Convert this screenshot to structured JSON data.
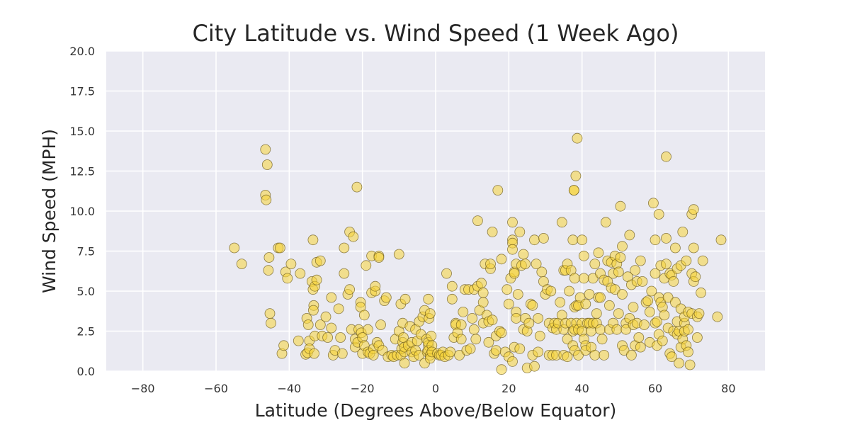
{
  "chart_data": {
    "type": "scatter",
    "title": "City Latitude vs. Wind Speed (1 Week Ago)",
    "xlabel": "Latitude (Degrees Above/Below Equator)",
    "ylabel": "Wind Speed (MPH)",
    "xlim": [
      -90,
      90
    ],
    "ylim": [
      0,
      20
    ],
    "x_ticks": [
      "−80",
      "−60",
      "−40",
      "−20",
      "0",
      "20",
      "40",
      "60",
      "80"
    ],
    "y_ticks": [
      "0.0",
      "2.5",
      "5.0",
      "7.5",
      "10.0",
      "12.5",
      "15.0",
      "17.5",
      "20.0"
    ],
    "grid": true,
    "legend": "none",
    "colors": {
      "background": "#eaeaf2",
      "grid": "#ffffff",
      "marker_fill": "#f5d33b",
      "marker_edge": "#6b5a1e"
    },
    "points": [
      [
        -55,
        7.7
      ],
      [
        -53,
        6.7
      ],
      [
        -46.5,
        13.85
      ],
      [
        -46,
        12.9
      ],
      [
        -46.5,
        11
      ],
      [
        -46.3,
        10.7
      ],
      [
        -45.5,
        7.1
      ],
      [
        -45.7,
        6.3
      ],
      [
        -45.3,
        3.6
      ],
      [
        -45,
        3
      ],
      [
        -43,
        7.7
      ],
      [
        -42.5,
        7.7
      ],
      [
        -42,
        1.1
      ],
      [
        -41.5,
        1.6
      ],
      [
        -41,
        6.2
      ],
      [
        -40.5,
        5.8
      ],
      [
        -39.5,
        6.7
      ],
      [
        -37,
        6.1
      ],
      [
        -37.5,
        1.9
      ],
      [
        -35.5,
        1.05
      ],
      [
        -35,
        1.15
      ],
      [
        -35.2,
        3.3
      ],
      [
        -34.8,
        2.9
      ],
      [
        -34.5,
        1.9
      ],
      [
        -34.5,
        1.4
      ],
      [
        -33.5,
        8.2
      ],
      [
        -33.8,
        5.6
      ],
      [
        -33.5,
        5.1
      ],
      [
        -33,
        5.3
      ],
      [
        -33.3,
        4.1
      ],
      [
        -33.4,
        3.8
      ],
      [
        -33,
        2.2
      ],
      [
        -33.2,
        1.1
      ],
      [
        -32.5,
        5.7
      ],
      [
        -32.5,
        6.8
      ],
      [
        -31.5,
        6.9
      ],
      [
        -31,
        2.2
      ],
      [
        -31.5,
        2.9
      ],
      [
        -30,
        3.4
      ],
      [
        -29.5,
        2.1
      ],
      [
        -28.5,
        4.6
      ],
      [
        -28.5,
        2.7
      ],
      [
        -28,
        1.0
      ],
      [
        -27.5,
        1.3
      ],
      [
        -26.5,
        3.9
      ],
      [
        -26,
        2.1
      ],
      [
        -25.5,
        1.1
      ],
      [
        -25,
        7.7
      ],
      [
        -25,
        6.1
      ],
      [
        -24,
        4.8
      ],
      [
        -23.5,
        5.1
      ],
      [
        -23.5,
        8.7
      ],
      [
        -23,
        2.6
      ],
      [
        -22.5,
        8.4
      ],
      [
        -22,
        1.5
      ],
      [
        -22,
        2.0
      ],
      [
        -21.5,
        11.5
      ],
      [
        -21.3,
        1.8
      ],
      [
        -21,
        2.6
      ],
      [
        -20.5,
        4.3
      ],
      [
        -20.5,
        4.0
      ],
      [
        -20.3,
        2.4
      ],
      [
        -20,
        1.1
      ],
      [
        -20,
        2.1
      ],
      [
        -19.5,
        1.6
      ],
      [
        -19.5,
        3.5
      ],
      [
        -19,
        6.6
      ],
      [
        -18.5,
        2.6
      ],
      [
        -18.5,
        1.2
      ],
      [
        -18,
        1.1
      ],
      [
        -17.5,
        4.9
      ],
      [
        -17.5,
        7.2
      ],
      [
        -17,
        1.4
      ],
      [
        -17,
        1.0
      ],
      [
        -16.5,
        5.0
      ],
      [
        -16.5,
        5.3
      ],
      [
        -16,
        1.8
      ],
      [
        -15.5,
        1.6
      ],
      [
        -15.5,
        7.2
      ],
      [
        -15.5,
        7.1
      ],
      [
        -15,
        2.9
      ],
      [
        -14.5,
        1.3
      ],
      [
        -14,
        4.4
      ],
      [
        -13.5,
        4.6
      ],
      [
        -13,
        0.9
      ],
      [
        -12,
        1.0
      ],
      [
        -11.5,
        0.9
      ],
      [
        -11,
        2.0
      ],
      [
        -10.5,
        1.0
      ],
      [
        -10,
        7.3
      ],
      [
        -10,
        2.5
      ],
      [
        -9.5,
        4.2
      ],
      [
        -9.5,
        1.0
      ],
      [
        -9.3,
        1.4
      ],
      [
        -9,
        3.0
      ],
      [
        -9,
        1.8
      ],
      [
        -8.8,
        2.1
      ],
      [
        -8.5,
        0.5
      ],
      [
        -8.5,
        1.2
      ],
      [
        -8.5,
        1.5
      ],
      [
        -8.3,
        4.5
      ],
      [
        -7.5,
        1.6
      ],
      [
        -7,
        2.8
      ],
      [
        -6.5,
        1.8
      ],
      [
        -6.5,
        1.2
      ],
      [
        -6,
        0.9
      ],
      [
        -5.5,
        2.6
      ],
      [
        -5.5,
        1.3
      ],
      [
        -5,
        1.9
      ],
      [
        -4.5,
        1.0
      ],
      [
        -4.5,
        3.1
      ],
      [
        -4,
        2.3
      ],
      [
        -3.5,
        3.4
      ],
      [
        -3,
        0.5
      ],
      [
        -3,
        3.8
      ],
      [
        -2.5,
        2.0
      ],
      [
        -2,
        4.5
      ],
      [
        -2.3,
        1.2
      ],
      [
        -2,
        1.6
      ],
      [
        -2,
        1.8
      ],
      [
        -2,
        1.3
      ],
      [
        -1.8,
        3.3
      ],
      [
        -1.5,
        3.6
      ],
      [
        -1.5,
        1.0
      ],
      [
        -1.5,
        0.8
      ],
      [
        -1.2,
        2.2
      ],
      [
        -1,
        1.6
      ],
      [
        -1,
        1.2
      ],
      [
        0.5,
        1.1
      ],
      [
        1,
        1.0
      ],
      [
        1.5,
        1.0
      ],
      [
        2,
        1.2
      ],
      [
        2.5,
        0.9
      ],
      [
        3,
        6.1
      ],
      [
        3.5,
        1.0
      ],
      [
        4,
        1.2
      ],
      [
        4.5,
        4.5
      ],
      [
        4.5,
        5.3
      ],
      [
        5,
        2.1
      ],
      [
        5.5,
        3.0
      ],
      [
        5.5,
        2.9
      ],
      [
        6,
        2.4
      ],
      [
        6.5,
        1.0
      ],
      [
        7,
        2.9
      ],
      [
        7,
        2.0
      ],
      [
        7.5,
        3.7
      ],
      [
        8,
        5.1
      ],
      [
        8.5,
        1.3
      ],
      [
        9,
        5.1
      ],
      [
        9.5,
        1.4
      ],
      [
        10,
        3.3
      ],
      [
        10.5,
        2.6
      ],
      [
        10.5,
        5.1
      ],
      [
        11,
        2.0
      ],
      [
        11.5,
        9.4
      ],
      [
        11.5,
        5.3
      ],
      [
        12,
        3.8
      ],
      [
        12.5,
        5.5
      ],
      [
        13,
        3.0
      ],
      [
        13,
        4.9
      ],
      [
        13,
        4.3
      ],
      [
        13.5,
        6.7
      ],
      [
        14,
        3.5
      ],
      [
        14.5,
        1.8
      ],
      [
        14.5,
        3.1
      ],
      [
        15,
        6.4
      ],
      [
        15,
        6.7
      ],
      [
        15.5,
        8.7
      ],
      [
        15.5,
        3.2
      ],
      [
        16,
        1.1
      ],
      [
        16.5,
        1.3
      ],
      [
        16.5,
        2.2
      ],
      [
        17,
        11.3
      ],
      [
        17.5,
        2.5
      ],
      [
        18,
        7.0
      ],
      [
        18,
        2.4
      ],
      [
        18,
        0.1
      ],
      [
        19,
        1.2
      ],
      [
        19.5,
        5.1
      ],
      [
        20,
        4.2
      ],
      [
        20,
        0.9
      ],
      [
        20.5,
        5.8
      ],
      [
        21,
        8.2
      ],
      [
        21,
        8.0
      ],
      [
        21,
        7.6
      ],
      [
        21,
        0.6
      ],
      [
        21,
        9.3
      ],
      [
        21.5,
        6.2
      ],
      [
        21.5,
        6.1
      ],
      [
        21.5,
        1.5
      ],
      [
        22,
        3.7
      ],
      [
        22,
        6.7
      ],
      [
        22,
        3.3
      ],
      [
        22.5,
        4.8
      ],
      [
        23,
        8.7
      ],
      [
        23,
        1.4
      ],
      [
        23.5,
        6.6
      ],
      [
        24,
        2.6
      ],
      [
        24,
        7.3
      ],
      [
        24.5,
        6.7
      ],
      [
        24.5,
        3.3
      ],
      [
        25,
        0.2
      ],
      [
        25,
        2.5
      ],
      [
        25.5,
        3.0
      ],
      [
        26,
        4.2
      ],
      [
        26.5,
        4.1
      ],
      [
        26.5,
        1.0
      ],
      [
        27,
        0.3
      ],
      [
        27,
        8.2
      ],
      [
        27.5,
        6.7
      ],
      [
        28,
        1.2
      ],
      [
        28,
        3.3
      ],
      [
        28.5,
        2.2
      ],
      [
        29,
        6.2
      ],
      [
        29.5,
        5.6
      ],
      [
        29.5,
        8.3
      ],
      [
        30,
        4.8
      ],
      [
        30.5,
        5.1
      ],
      [
        31,
        3.0
      ],
      [
        31,
        1.0
      ],
      [
        31.5,
        5.0
      ],
      [
        32,
        2.7
      ],
      [
        32,
        1.0
      ],
      [
        32.5,
        3.0
      ],
      [
        33,
        2.6
      ],
      [
        33,
        1.0
      ],
      [
        33.5,
        3.0
      ],
      [
        34,
        4.3
      ],
      [
        34.5,
        9.3
      ],
      [
        34.5,
        3.5
      ],
      [
        35,
        6.3
      ],
      [
        35,
        2.6
      ],
      [
        35,
        1.0
      ],
      [
        35.5,
        3.0
      ],
      [
        35.5,
        6.3
      ],
      [
        36,
        6.7
      ],
      [
        36,
        0.9
      ],
      [
        36,
        2.0
      ],
      [
        36.5,
        5.0
      ],
      [
        37,
        3.0
      ],
      [
        37,
        6.3
      ],
      [
        37.5,
        8.2
      ],
      [
        37.5,
        1.6
      ],
      [
        37.5,
        2.5
      ],
      [
        37.8,
        11.3
      ],
      [
        37.8,
        11.3
      ],
      [
        38,
        5.8
      ],
      [
        38,
        4.0
      ],
      [
        38,
        2.6
      ],
      [
        38,
        1.3
      ],
      [
        38.3,
        12.2
      ],
      [
        38.7,
        14.55
      ],
      [
        38.5,
        3.0
      ],
      [
        38.5,
        4.1
      ],
      [
        39,
        4.1
      ],
      [
        39,
        2.6
      ],
      [
        39,
        1.0
      ],
      [
        39.5,
        4.6
      ],
      [
        40,
        3.0
      ],
      [
        40,
        8.2
      ],
      [
        40,
        2.5
      ],
      [
        40.5,
        7.2
      ],
      [
        40.5,
        5.8
      ],
      [
        40.5,
        2.0
      ],
      [
        41,
        4.2
      ],
      [
        41,
        1.6
      ],
      [
        41,
        1.3
      ],
      [
        41.5,
        3.0
      ],
      [
        42,
        3.0
      ],
      [
        42,
        4.8
      ],
      [
        42.5,
        2.5
      ],
      [
        42.5,
        1.5
      ],
      [
        43,
        3.0
      ],
      [
        43,
        5.8
      ],
      [
        43.5,
        6.7
      ],
      [
        43.5,
        1.0
      ],
      [
        44,
        3.6
      ],
      [
        44,
        3.0
      ],
      [
        44.5,
        7.4
      ],
      [
        44.5,
        4.6
      ],
      [
        45,
        2.6
      ],
      [
        45,
        4.6
      ],
      [
        45,
        6.1
      ],
      [
        45.5,
        2.0
      ],
      [
        46,
        5.7
      ],
      [
        46,
        1.0
      ],
      [
        46.5,
        9.3
      ],
      [
        47,
        6.9
      ],
      [
        47,
        5.6
      ],
      [
        47.5,
        2.6
      ],
      [
        47.5,
        4.1
      ],
      [
        48,
        6.8
      ],
      [
        48,
        5.2
      ],
      [
        48.5,
        3.0
      ],
      [
        48.5,
        6.1
      ],
      [
        49,
        7.2
      ],
      [
        49,
        5.1
      ],
      [
        49.5,
        2.6
      ],
      [
        49.5,
        6.7
      ],
      [
        50,
        3.6
      ],
      [
        50,
        6.2
      ],
      [
        50.5,
        10.3
      ],
      [
        50.5,
        7.1
      ],
      [
        51,
        1.6
      ],
      [
        51,
        4.8
      ],
      [
        51,
        7.8
      ],
      [
        51.5,
        1.3
      ],
      [
        52,
        3.0
      ],
      [
        52,
        2.6
      ],
      [
        52.5,
        5.9
      ],
      [
        53,
        8.5
      ],
      [
        53,
        3.3
      ],
      [
        53.5,
        1.0
      ],
      [
        53.5,
        5.4
      ],
      [
        54,
        4.0
      ],
      [
        54,
        2.9
      ],
      [
        54.5,
        6.3
      ],
      [
        54.5,
        1.6
      ],
      [
        55,
        5.6
      ],
      [
        55,
        3.0
      ],
      [
        55.5,
        2.1
      ],
      [
        56,
        1.5
      ],
      [
        56,
        6.9
      ],
      [
        56.5,
        5.6
      ],
      [
        57,
        2.9
      ],
      [
        57.5,
        4.3
      ],
      [
        58,
        4.4
      ],
      [
        58.5,
        1.8
      ],
      [
        58.5,
        3.7
      ],
      [
        59,
        5.0
      ],
      [
        59.5,
        10.5
      ],
      [
        60,
        6.1
      ],
      [
        60,
        8.2
      ],
      [
        60,
        3.0
      ],
      [
        60.5,
        1.6
      ],
      [
        60.5,
        3.1
      ],
      [
        61,
        9.8
      ],
      [
        61,
        4.6
      ],
      [
        61,
        2.3
      ],
      [
        61.5,
        6.6
      ],
      [
        61.5,
        4.3
      ],
      [
        62,
        4.0
      ],
      [
        62,
        1.9
      ],
      [
        62.5,
        5.8
      ],
      [
        62.5,
        3.5
      ],
      [
        63,
        6.7
      ],
      [
        63,
        13.4
      ],
      [
        63,
        8.3
      ],
      [
        63.5,
        4.6
      ],
      [
        63.5,
        2.7
      ],
      [
        64,
        6.1
      ],
      [
        64,
        1.1
      ],
      [
        64.5,
        6.0
      ],
      [
        64.5,
        0.9
      ],
      [
        65,
        2.5
      ],
      [
        65,
        5.6
      ],
      [
        65.5,
        4.3
      ],
      [
        65.5,
        7.7
      ],
      [
        66,
        6.4
      ],
      [
        66,
        2.3
      ],
      [
        66,
        3.1
      ],
      [
        66.5,
        2.5
      ],
      [
        66.5,
        0.5
      ],
      [
        67,
        1.5
      ],
      [
        67,
        6.6
      ],
      [
        67,
        3.9
      ],
      [
        67.5,
        2.0
      ],
      [
        67.5,
        8.7
      ],
      [
        68,
        3.0
      ],
      [
        68,
        3.4
      ],
      [
        68,
        2.5
      ],
      [
        68.5,
        1.6
      ],
      [
        68.5,
        6.9
      ],
      [
        69,
        3.7
      ],
      [
        69,
        1.2
      ],
      [
        69,
        2.6
      ],
      [
        69.5,
        0.4
      ],
      [
        70,
        6.1
      ],
      [
        70,
        3.6
      ],
      [
        70,
        9.8
      ],
      [
        70.5,
        5.6
      ],
      [
        70.5,
        10.1
      ],
      [
        70.5,
        7.7
      ],
      [
        71,
        5.9
      ],
      [
        71.5,
        3.4
      ],
      [
        71.5,
        2.1
      ],
      [
        72,
        3.6
      ],
      [
        72.5,
        4.9
      ],
      [
        73,
        6.9
      ],
      [
        77,
        3.4
      ],
      [
        78,
        8.2
      ]
    ]
  }
}
